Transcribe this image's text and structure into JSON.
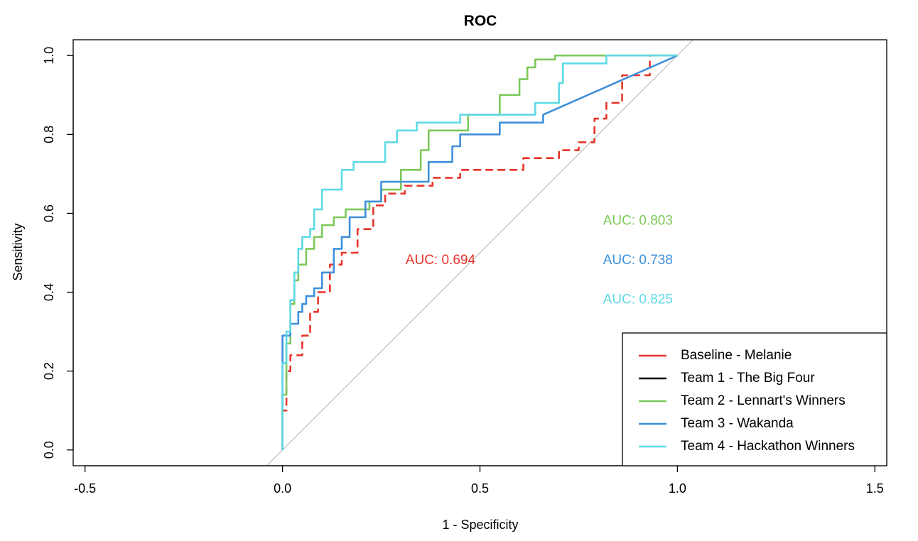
{
  "chart_data": {
    "type": "line",
    "title": "ROC",
    "xlabel": "1 - Specificity",
    "ylabel": "Sensitivity",
    "xlim": [
      -0.53,
      1.53
    ],
    "ylim": [
      -0.04,
      1.04
    ],
    "xticks": [
      {
        "value": -0.5,
        "label": "-0.5"
      },
      {
        "value": 0.0,
        "label": "0.0"
      },
      {
        "value": 0.5,
        "label": "0.5"
      },
      {
        "value": 1.0,
        "label": "1.0"
      },
      {
        "value": 1.5,
        "label": "1.5"
      }
    ],
    "yticks": [
      {
        "value": 0.0,
        "label": "0.0"
      },
      {
        "value": 0.2,
        "label": "0.2"
      },
      {
        "value": 0.4,
        "label": "0.4"
      },
      {
        "value": 0.6,
        "label": "0.6"
      },
      {
        "value": 0.8,
        "label": "0.8"
      },
      {
        "value": 1.0,
        "label": "1.0"
      }
    ],
    "reference_line": {
      "x": [
        -0.04,
        1.04
      ],
      "y": [
        -0.04,
        1.04
      ],
      "color": "#bebebe"
    },
    "series": [
      {
        "name": "Baseline - Melanie",
        "color": "#e8352b",
        "dashed": true,
        "x": [
          0.0,
          0.0,
          0.01,
          0.01,
          0.02,
          0.02,
          0.05,
          0.05,
          0.07,
          0.07,
          0.09,
          0.09,
          0.12,
          0.12,
          0.15,
          0.15,
          0.19,
          0.19,
          0.23,
          0.23,
          0.26,
          0.26,
          0.31,
          0.31,
          0.38,
          0.38,
          0.45,
          0.45,
          0.55,
          0.55,
          0.61,
          0.61,
          0.66,
          0.66,
          0.7,
          0.7,
          0.75,
          0.75,
          0.79,
          0.79,
          0.82,
          0.82,
          0.86,
          0.86,
          0.9,
          0.9,
          0.93,
          0.93,
          1.0
        ],
        "y": [
          0.0,
          0.1,
          0.1,
          0.2,
          0.2,
          0.24,
          0.24,
          0.29,
          0.29,
          0.35,
          0.35,
          0.4,
          0.4,
          0.47,
          0.47,
          0.5,
          0.5,
          0.56,
          0.56,
          0.62,
          0.62,
          0.65,
          0.65,
          0.67,
          0.67,
          0.69,
          0.69,
          0.71,
          0.71,
          0.71,
          0.71,
          0.74,
          0.74,
          0.74,
          0.74,
          0.76,
          0.76,
          0.78,
          0.78,
          0.84,
          0.84,
          0.88,
          0.88,
          0.95,
          0.95,
          0.95,
          0.95,
          1.0,
          1.0
        ]
      },
      {
        "name": "Team 1 - The Big Four",
        "color": "#000000",
        "dashed": false,
        "x": [],
        "y": []
      },
      {
        "name": "Team 2 - Lennart's Winners",
        "color": "#7cc95a",
        "dashed": false,
        "x": [
          0.0,
          0.0,
          0.01,
          0.01,
          0.02,
          0.02,
          0.03,
          0.03,
          0.04,
          0.04,
          0.06,
          0.06,
          0.08,
          0.08,
          0.1,
          0.1,
          0.13,
          0.13,
          0.16,
          0.16,
          0.22,
          0.22,
          0.25,
          0.25,
          0.3,
          0.3,
          0.35,
          0.35,
          0.37,
          0.37,
          0.47,
          0.47,
          0.55,
          0.55,
          0.6,
          0.6,
          0.62,
          0.62,
          0.64,
          0.64,
          0.69,
          0.69,
          0.82,
          0.82,
          1.0
        ],
        "y": [
          0.0,
          0.14,
          0.14,
          0.27,
          0.27,
          0.37,
          0.37,
          0.43,
          0.43,
          0.47,
          0.47,
          0.51,
          0.51,
          0.54,
          0.54,
          0.57,
          0.57,
          0.59,
          0.59,
          0.61,
          0.61,
          0.63,
          0.63,
          0.66,
          0.66,
          0.71,
          0.71,
          0.76,
          0.76,
          0.81,
          0.81,
          0.85,
          0.85,
          0.9,
          0.9,
          0.94,
          0.94,
          0.97,
          0.97,
          0.99,
          0.99,
          1.0,
          1.0,
          1.0,
          1.0
        ]
      },
      {
        "name": "Team 3 - Wakanda",
        "color": "#3d8fdb",
        "dashed": false,
        "x": [
          0.0,
          0.0,
          0.02,
          0.02,
          0.04,
          0.04,
          0.05,
          0.05,
          0.06,
          0.06,
          0.08,
          0.08,
          0.1,
          0.1,
          0.13,
          0.13,
          0.15,
          0.15,
          0.17,
          0.17,
          0.21,
          0.21,
          0.25,
          0.25,
          0.3,
          0.3,
          0.37,
          0.37,
          0.43,
          0.43,
          0.45,
          0.45,
          0.55,
          0.55,
          0.66,
          0.66,
          1.0
        ],
        "y": [
          0.0,
          0.29,
          0.29,
          0.32,
          0.32,
          0.35,
          0.35,
          0.37,
          0.37,
          0.39,
          0.39,
          0.41,
          0.41,
          0.45,
          0.45,
          0.51,
          0.51,
          0.54,
          0.54,
          0.59,
          0.59,
          0.63,
          0.63,
          0.68,
          0.68,
          0.68,
          0.68,
          0.73,
          0.73,
          0.77,
          0.77,
          0.8,
          0.8,
          0.83,
          0.83,
          0.85,
          1.0
        ]
      },
      {
        "name": "Team 4 - Hackathon Winners",
        "color": "#5fd9e6",
        "dashed": false,
        "x": [
          0.0,
          0.0,
          0.01,
          0.01,
          0.02,
          0.02,
          0.03,
          0.03,
          0.04,
          0.04,
          0.05,
          0.05,
          0.07,
          0.07,
          0.08,
          0.08,
          0.1,
          0.1,
          0.13,
          0.13,
          0.15,
          0.15,
          0.18,
          0.18,
          0.26,
          0.26,
          0.29,
          0.29,
          0.34,
          0.34,
          0.45,
          0.45,
          0.64,
          0.64,
          0.7,
          0.7,
          0.71,
          0.71,
          0.82,
          0.82,
          1.0
        ],
        "y": [
          0.0,
          0.22,
          0.22,
          0.3,
          0.3,
          0.38,
          0.38,
          0.45,
          0.45,
          0.51,
          0.51,
          0.54,
          0.54,
          0.56,
          0.56,
          0.61,
          0.61,
          0.66,
          0.66,
          0.66,
          0.66,
          0.71,
          0.71,
          0.73,
          0.73,
          0.78,
          0.78,
          0.81,
          0.81,
          0.83,
          0.83,
          0.85,
          0.85,
          0.88,
          0.88,
          0.93,
          0.93,
          0.98,
          0.98,
          1.0,
          1.0
        ]
      }
    ],
    "annotations": [
      {
        "text": "AUC: 0.694",
        "x": 0.4,
        "y": 0.48,
        "color": "#e8352b"
      },
      {
        "text": "AUC: 0.803",
        "x": 0.9,
        "y": 0.58,
        "color": "#7cc95a"
      },
      {
        "text": "AUC: 0.738",
        "x": 0.9,
        "y": 0.48,
        "color": "#3d8fdb"
      },
      {
        "text": "AUC: 0.825",
        "x": 0.9,
        "y": 0.38,
        "color": "#5fd9e6"
      }
    ],
    "legend": {
      "position": "bottom-right"
    },
    "grid": false
  }
}
